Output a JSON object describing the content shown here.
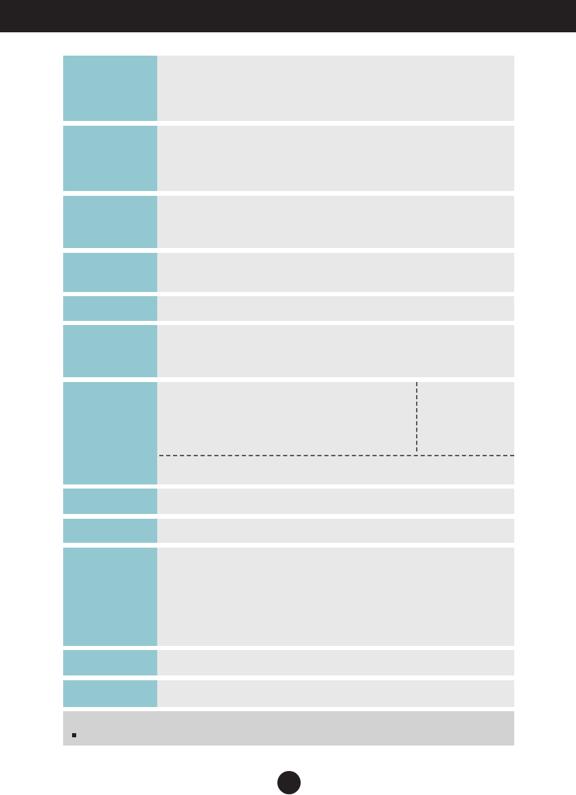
{
  "colors": {
    "header_bar": "#231f20",
    "label_cell": "#94c8d0",
    "value_cell": "#e8e8e8",
    "note_box": "#d2d2d2"
  },
  "spec_table": {
    "rows": [
      {
        "label": "",
        "value": ""
      },
      {
        "label": "",
        "value": ""
      },
      {
        "label": "",
        "value": ""
      },
      {
        "label": "",
        "value": ""
      },
      {
        "label": "",
        "value": ""
      },
      {
        "label": "",
        "value": ""
      },
      {
        "label": "",
        "value_left": "",
        "value_right": "",
        "value_bottom": ""
      },
      {
        "label": "",
        "value": ""
      },
      {
        "label": "",
        "value": ""
      },
      {
        "label": "",
        "value": ""
      },
      {
        "label": "",
        "value": ""
      },
      {
        "label": "",
        "value": ""
      }
    ]
  },
  "note": {
    "text": ""
  },
  "page_number": ""
}
